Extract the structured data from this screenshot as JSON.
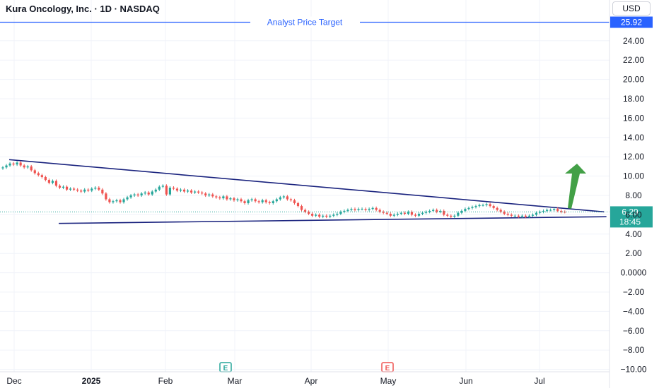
{
  "header": {
    "title": "Kura Oncology, Inc. · 1D · NASDAQ",
    "currency": "USD"
  },
  "colors": {
    "up": "#26a69a",
    "down": "#ef5350",
    "trendline": "#1a237e",
    "target": "#2962ff",
    "arrow": "#43a047",
    "grid": "#f0f3fa"
  },
  "price_axis": {
    "ticks": [
      "24.00",
      "22.00",
      "20.00",
      "18.00",
      "16.00",
      "14.00",
      "12.00",
      "10.00",
      "8.00",
      "6.00",
      "4.00",
      "2.00",
      "0.0000",
      "−2.00",
      "−4.00",
      "−6.00",
      "−8.00",
      "−10.00"
    ],
    "target_label": "25.92",
    "last_price": "6.29",
    "countdown": "18:45"
  },
  "time_axis": {
    "labels": [
      "Dec",
      "2025",
      "Feb",
      "Mar",
      "Apr",
      "May",
      "Jun",
      "Jul"
    ]
  },
  "annotations": {
    "target_line_label": "Analyst Price Target",
    "earnings_marker": "E"
  },
  "chart_data": {
    "type": "candlestick",
    "title": "Kura Oncology, Inc. · 1D · NASDAQ",
    "ylim": [
      -10.5,
      27.5
    ],
    "grid": true,
    "price_target": 25.92,
    "last_price": 6.29,
    "closes": [
      10.9,
      11.1,
      11.3,
      11.2,
      11.4,
      11.1,
      10.9,
      11.0,
      10.6,
      10.3,
      10.1,
      9.9,
      9.6,
      9.3,
      9.5,
      9.0,
      8.8,
      8.9,
      8.6,
      8.7,
      8.6,
      8.5,
      8.4,
      8.6,
      8.5,
      8.7,
      8.8,
      8.6,
      8.2,
      7.6,
      7.3,
      7.4,
      7.5,
      7.3,
      7.6,
      7.8,
      8.0,
      8.1,
      8.0,
      8.2,
      8.3,
      8.1,
      8.4,
      8.6,
      8.9,
      9.0,
      8.1,
      8.8,
      8.7,
      8.5,
      8.6,
      8.4,
      8.5,
      8.3,
      8.4,
      8.3,
      8.2,
      8.0,
      8.1,
      7.9,
      7.8,
      7.7,
      7.9,
      7.6,
      7.7,
      7.5,
      7.6,
      7.4,
      7.2,
      7.5,
      7.6,
      7.4,
      7.3,
      7.5,
      7.3,
      7.2,
      7.4,
      7.6,
      7.8,
      7.9,
      7.6,
      7.5,
      7.2,
      6.9,
      6.5,
      6.3,
      6.1,
      5.9,
      6.0,
      5.8,
      5.9,
      5.8,
      5.9,
      6.0,
      6.1,
      6.3,
      6.4,
      6.5,
      6.6,
      6.5,
      6.6,
      6.6,
      6.5,
      6.6,
      6.7,
      6.5,
      6.3,
      6.2,
      6.1,
      5.9,
      6.0,
      6.1,
      6.2,
      6.1,
      6.3,
      6.0,
      5.9,
      6.1,
      6.2,
      6.3,
      6.4,
      6.5,
      6.3,
      6.4,
      6.0,
      5.9,
      5.8,
      5.9,
      6.2,
      6.4,
      6.6,
      6.7,
      6.8,
      6.9,
      7.0,
      7.0,
      7.1,
      6.9,
      6.7,
      6.5,
      6.3,
      6.1,
      6.0,
      5.9,
      5.9,
      5.8,
      5.9,
      5.8,
      5.9,
      6.0,
      6.2,
      6.3,
      6.4,
      6.5,
      6.5,
      6.6,
      6.4,
      6.3,
      6.29
    ],
    "trendlines": [
      {
        "from": {
          "date": "2024-11-29",
          "price": 11.7
        },
        "to": {
          "date": "2025-07-27",
          "price": 6.3
        }
      },
      {
        "from": {
          "date": "2024-12-19",
          "price": 5.1
        },
        "to": {
          "date": "2025-07-28",
          "price": 5.8
        }
      }
    ]
  }
}
